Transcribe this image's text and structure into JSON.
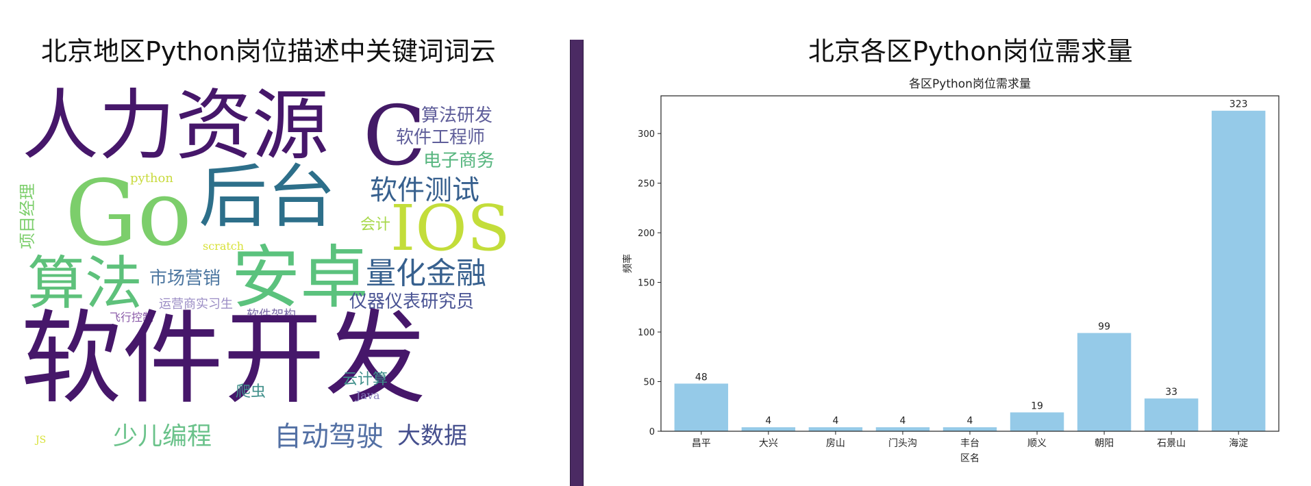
{
  "left_panel": {
    "title": "北京地区Python岗位描述中关键词词云",
    "words": [
      {
        "text": "人力资源",
        "color": "#46176a"
      },
      {
        "text": "C",
        "color": "#431a66"
      },
      {
        "text": "算法研发",
        "color": "#5f5e9a"
      },
      {
        "text": "软件工程师",
        "color": "#5f5e9a"
      },
      {
        "text": "电子商务",
        "color": "#56b57e"
      },
      {
        "text": "python",
        "color": "#c8da3c"
      },
      {
        "text": "Go",
        "color": "#7cce6b"
      },
      {
        "text": "后台",
        "color": "#2d6f8a"
      },
      {
        "text": "软件测试",
        "color": "#37608e"
      },
      {
        "text": "IOS",
        "color": "#c3dd3a"
      },
      {
        "text": "会计",
        "color": "#a7d84a"
      },
      {
        "text": "项目经理",
        "color": "#7cce6b"
      },
      {
        "text": "scratch",
        "color": "#d8e23a"
      },
      {
        "text": "算法",
        "color": "#5ec17b"
      },
      {
        "text": "安卓",
        "color": "#5bc27d"
      },
      {
        "text": "量化金融",
        "color": "#37608e"
      },
      {
        "text": "市场营销",
        "color": "#4c76a0"
      },
      {
        "text": "运营商实习生",
        "color": "#9a8cc4"
      },
      {
        "text": "仪器仪表研究员",
        "color": "#4a5494"
      },
      {
        "text": "飞行控制",
        "color": "#8a5aa8"
      },
      {
        "text": "软件架构",
        "color": "#7a6aa8"
      },
      {
        "text": "软件开发",
        "color": "#46176a"
      },
      {
        "text": "云计算",
        "color": "#3f8f8a"
      },
      {
        "text": "Java",
        "color": "#8a80c0"
      },
      {
        "text": "爬虫",
        "color": "#3f8f8a"
      },
      {
        "text": "少儿编程",
        "color": "#6ac28a"
      },
      {
        "text": "自动驾驶",
        "color": "#5370a4"
      },
      {
        "text": "大数据",
        "color": "#46508e"
      },
      {
        "text": "JS",
        "color": "#d8e23a"
      }
    ]
  },
  "right_panel": {
    "title": "北京各区Python岗位需求量"
  },
  "chart_data": {
    "type": "bar",
    "title": "各区Python岗位需求量",
    "xlabel": "区名",
    "ylabel": "频率",
    "categories": [
      "昌平",
      "大兴",
      "房山",
      "门头沟",
      "丰台",
      "顺义",
      "朝阳",
      "石景山",
      "海淀"
    ],
    "values": [
      48,
      4,
      4,
      4,
      4,
      19,
      99,
      33,
      323
    ],
    "data_labels": [
      "48",
      "4",
      "4",
      "4",
      "4",
      "19",
      "99",
      "33",
      "323"
    ],
    "ylim": [
      0,
      338
    ],
    "yticks": [
      0,
      50,
      100,
      150,
      200,
      250,
      300
    ],
    "ytick_labels": [
      "0",
      "50",
      "100",
      "150",
      "200",
      "250",
      "300"
    ],
    "bar_color": "#95cae8",
    "grid": false,
    "legend": false
  }
}
